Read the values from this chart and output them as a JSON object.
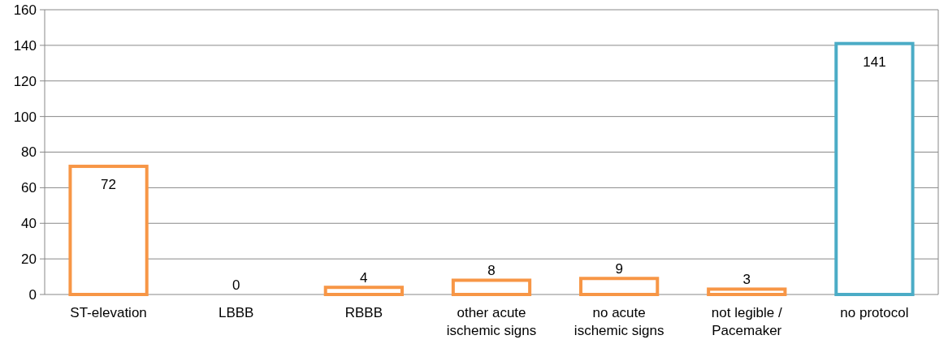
{
  "chart_data": {
    "type": "bar",
    "categories": [
      "ST-elevation",
      "LBBB",
      "RBBB",
      "other acute ischemic signs",
      "no acute ischemic signs",
      "not legible / Pacemaker",
      "no protocol"
    ],
    "values": [
      72,
      0,
      4,
      8,
      9,
      3,
      141
    ],
    "colors": [
      "#f79646",
      "#f79646",
      "#f79646",
      "#f79646",
      "#f79646",
      "#f79646",
      "#4bacc6"
    ],
    "ylim": [
      0,
      160
    ],
    "yticks": [
      0,
      20,
      40,
      60,
      80,
      100,
      120,
      140,
      160
    ],
    "grid": "y",
    "data_labels": true
  }
}
